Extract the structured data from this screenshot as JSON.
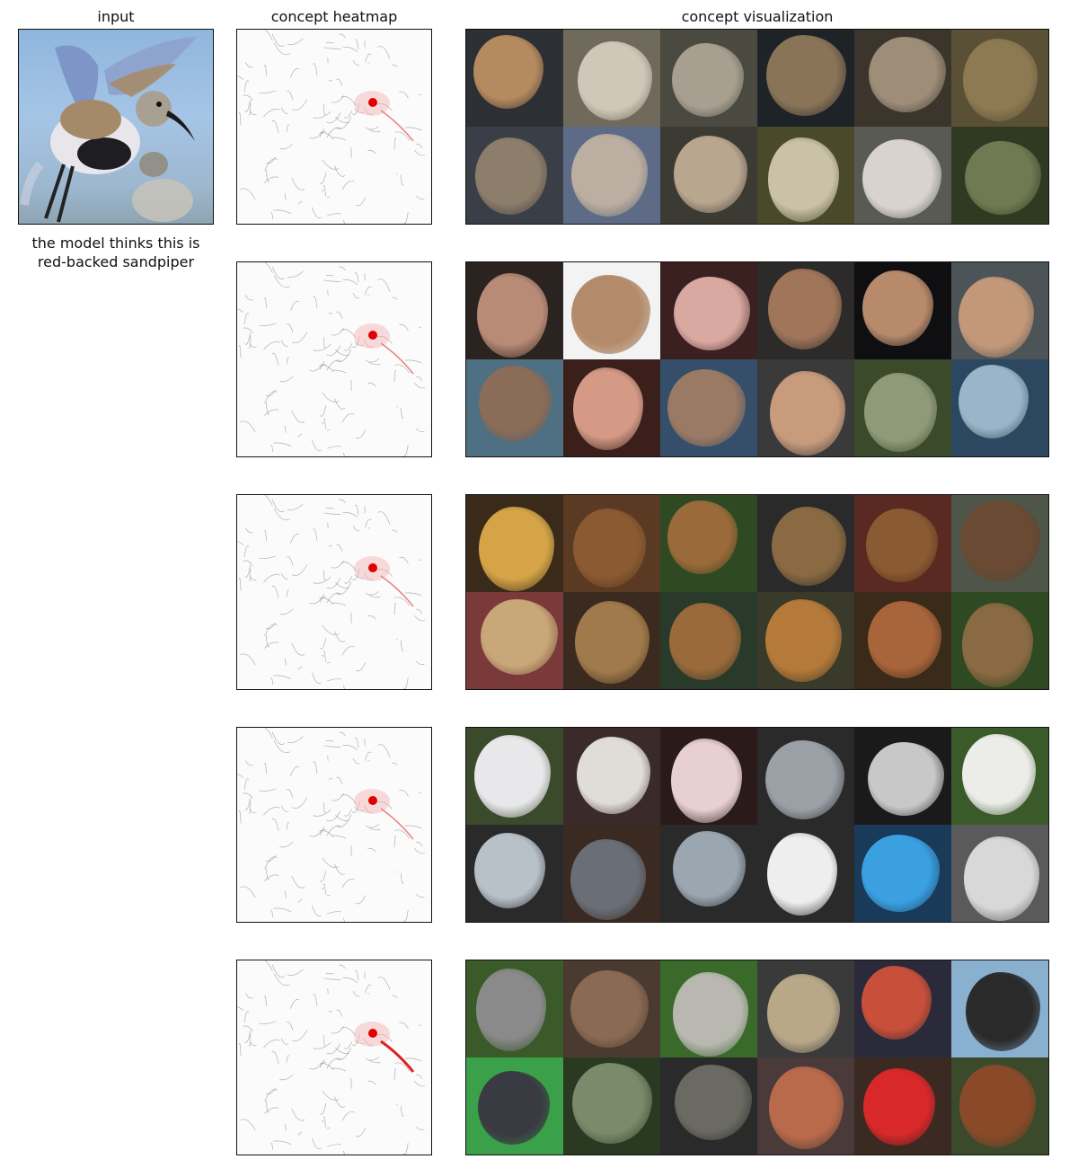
{
  "headers": {
    "input": "input",
    "heatmap": "concept heatmap",
    "visualization": "concept visualization"
  },
  "caption": {
    "line1": "the model thinks this is",
    "line2": "red-backed sandpiper"
  },
  "concepts": [
    {
      "tiles": [
        [
          "#2c2f33",
          "#b58a5e"
        ],
        [
          "#6f6a5c",
          "#cfc8b8"
        ],
        [
          "#4a4a40",
          "#a7a090"
        ],
        [
          "#1e2328",
          "#8a7457"
        ],
        [
          "#3b352c",
          "#9d8d79"
        ],
        [
          "#5a5036",
          "#8d7a52"
        ],
        [
          "#3a3f47",
          "#8d7d6b"
        ],
        [
          "#5d6b86",
          "#bcaea0"
        ],
        [
          "#3b3a33",
          "#b9a68f"
        ],
        [
          "#4a4a2a",
          "#c9c1a8"
        ],
        [
          "#5a5a55",
          "#d8d3cc"
        ],
        [
          "#2e3a22",
          "#6f7a53"
        ]
      ]
    },
    {
      "tiles": [
        [
          "#2a2320",
          "#b88b76"
        ],
        [
          "#f3f3f3",
          "#b48b6a"
        ],
        [
          "#3a2020",
          "#d9a8a0"
        ],
        [
          "#2c2b2a",
          "#a0755a"
        ],
        [
          "#0f0f12",
          "#b88a6c"
        ],
        [
          "#4c5458",
          "#c29879"
        ],
        [
          "#4f6f82",
          "#8a6c58"
        ],
        [
          "#3a1f1a",
          "#d49a86"
        ],
        [
          "#354f6a",
          "#9a7a65"
        ],
        [
          "#3a3a3a",
          "#c89b7d"
        ],
        [
          "#3a4a2a",
          "#8e9a78"
        ],
        [
          "#2c4860",
          "#9ab4c8"
        ]
      ]
    },
    {
      "tiles": [
        [
          "#3a2a1a",
          "#d4a447"
        ],
        [
          "#5a3a22",
          "#8a5a32"
        ],
        [
          "#2f4a22",
          "#9a6a3a"
        ],
        [
          "#2a2a2a",
          "#8a6a42"
        ],
        [
          "#5a2a22",
          "#8a5a32"
        ],
        [
          "#4f5548",
          "#6a4a32"
        ],
        [
          "#7a3a3a",
          "#c8a878"
        ],
        [
          "#3a2a20",
          "#a07a4a"
        ],
        [
          "#2a3a2a",
          "#9a6a3a"
        ],
        [
          "#3a3a2a",
          "#b57a3a"
        ],
        [
          "#3a2a1a",
          "#a8643a"
        ],
        [
          "#2f4a22",
          "#8a6a42"
        ]
      ]
    },
    {
      "tiles": [
        [
          "#3a4a2a",
          "#e8e8ea"
        ],
        [
          "#3a2a2a",
          "#e0dcd8"
        ],
        [
          "#2a1a1a",
          "#e8d0d0"
        ],
        [
          "#2a2a2a",
          "#9aa0a6"
        ],
        [
          "#1a1a1a",
          "#c8c8c8"
        ],
        [
          "#3a5a2a",
          "#ecece8"
        ],
        [
          "#2a2a2a",
          "#b8c0c8"
        ],
        [
          "#3a2a22",
          "#6a6e76"
        ],
        [
          "#2a2a2a",
          "#9aa6b0"
        ],
        [
          "#2a2a2a",
          "#eeeeee"
        ],
        [
          "#1a3a5a",
          "#3aa0e0"
        ],
        [
          "#5a5a5a",
          "#d8d8d8"
        ]
      ]
    },
    {
      "tiles": [
        [
          "#3a5a2a",
          "#8a8a8a"
        ],
        [
          "#4a3a30",
          "#8a6a52"
        ],
        [
          "#3a6a2a",
          "#b8b8b0"
        ],
        [
          "#3a3a3a",
          "#b8a888"
        ],
        [
          "#2a2a3a",
          "#c8503a"
        ],
        [
          "#8ab0d0",
          "#2a2a2a"
        ],
        [
          "#3aa04a",
          "#3a3a42"
        ],
        [
          "#2a3a22",
          "#7a8a6a"
        ],
        [
          "#2a2a2a",
          "#6a6a62"
        ],
        [
          "#4a3a3a",
          "#b86a4a"
        ],
        [
          "#3a2a22",
          "#d8282a"
        ],
        [
          "#3a4a2a",
          "#8a4a2a"
        ]
      ]
    }
  ]
}
